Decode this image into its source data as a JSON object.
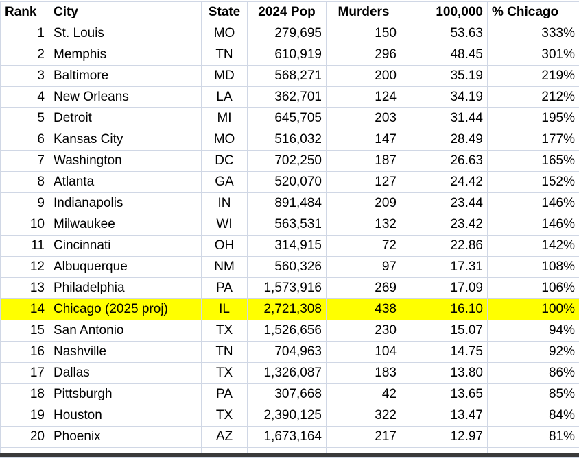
{
  "headers": {
    "rank": "Rank",
    "city": "City",
    "state": "State",
    "pop": "2024 Pop",
    "murders": "Murders",
    "rate": "100,000",
    "pct": "% Chicago"
  },
  "rows": [
    {
      "rank": "1",
      "city": "St. Louis",
      "state": "MO",
      "pop": "279,695",
      "murders": "150",
      "rate": "53.63",
      "pct": "333%"
    },
    {
      "rank": "2",
      "city": "Memphis",
      "state": "TN",
      "pop": "610,919",
      "murders": "296",
      "rate": "48.45",
      "pct": "301%"
    },
    {
      "rank": "3",
      "city": "Baltimore",
      "state": "MD",
      "pop": "568,271",
      "murders": "200",
      "rate": "35.19",
      "pct": "219%"
    },
    {
      "rank": "4",
      "city": "New Orleans",
      "state": "LA",
      "pop": "362,701",
      "murders": "124",
      "rate": "34.19",
      "pct": "212%"
    },
    {
      "rank": "5",
      "city": "Detroit",
      "state": "MI",
      "pop": "645,705",
      "murders": "203",
      "rate": "31.44",
      "pct": "195%"
    },
    {
      "rank": "6",
      "city": "Kansas City",
      "state": "MO",
      "pop": "516,032",
      "murders": "147",
      "rate": "28.49",
      "pct": "177%"
    },
    {
      "rank": "7",
      "city": "Washington",
      "state": "DC",
      "pop": "702,250",
      "murders": "187",
      "rate": "26.63",
      "pct": "165%"
    },
    {
      "rank": "8",
      "city": "Atlanta",
      "state": "GA",
      "pop": "520,070",
      "murders": "127",
      "rate": "24.42",
      "pct": "152%"
    },
    {
      "rank": "9",
      "city": "Indianapolis",
      "state": "IN",
      "pop": "891,484",
      "murders": "209",
      "rate": "23.44",
      "pct": "146%"
    },
    {
      "rank": "10",
      "city": "Milwaukee",
      "state": "WI",
      "pop": "563,531",
      "murders": "132",
      "rate": "23.42",
      "pct": "146%"
    },
    {
      "rank": "11",
      "city": "Cincinnati",
      "state": "OH",
      "pop": "314,915",
      "murders": "72",
      "rate": "22.86",
      "pct": "142%"
    },
    {
      "rank": "12",
      "city": "Albuquerque",
      "state": "NM",
      "pop": "560,326",
      "murders": "97",
      "rate": "17.31",
      "pct": "108%"
    },
    {
      "rank": "13",
      "city": "Philadelphia",
      "state": "PA",
      "pop": "1,573,916",
      "murders": "269",
      "rate": "17.09",
      "pct": "106%"
    },
    {
      "rank": "14",
      "city": "Chicago (2025 proj)",
      "state": "IL",
      "pop": "2,721,308",
      "murders": "438",
      "rate": "16.10",
      "pct": "100%",
      "highlight": true
    },
    {
      "rank": "15",
      "city": "San Antonio",
      "state": "TX",
      "pop": "1,526,656",
      "murders": "230",
      "rate": "15.07",
      "pct": "94%"
    },
    {
      "rank": "16",
      "city": "Nashville",
      "state": "TN",
      "pop": "704,963",
      "murders": "104",
      "rate": "14.75",
      "pct": "92%"
    },
    {
      "rank": "17",
      "city": "Dallas",
      "state": "TX",
      "pop": "1,326,087",
      "murders": "183",
      "rate": "13.80",
      "pct": "86%"
    },
    {
      "rank": "18",
      "city": "Pittsburgh",
      "state": "PA",
      "pop": "307,668",
      "murders": "42",
      "rate": "13.65",
      "pct": "85%"
    },
    {
      "rank": "19",
      "city": "Houston",
      "state": "TX",
      "pop": "2,390,125",
      "murders": "322",
      "rate": "13.47",
      "pct": "84%"
    },
    {
      "rank": "20",
      "city": "Phoenix",
      "state": "AZ",
      "pop": "1,673,164",
      "murders": "217",
      "rate": "12.97",
      "pct": "81%"
    }
  ],
  "colors": {
    "highlight": "#ffff00",
    "gridline": "#d0d7e5"
  }
}
